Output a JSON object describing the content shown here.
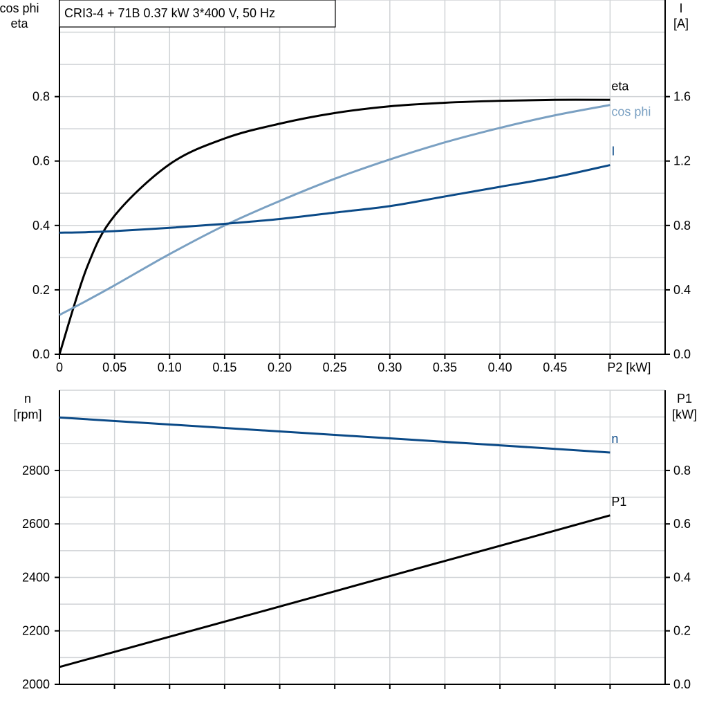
{
  "title": "CRI3-4 + 71B   0.37 kW   3*400 V, 50 Hz",
  "chart_data": [
    {
      "type": "line",
      "xlabel": "P2 [kW]",
      "x_ticks": [
        "0",
        "0.05",
        "0.10",
        "0.15",
        "0.20",
        "0.25",
        "0.30",
        "0.35",
        "0.40",
        "0.45"
      ],
      "xlim": [
        0,
        0.55
      ],
      "grid": true,
      "left_axis": {
        "label_lines": [
          "cos phi",
          "eta"
        ],
        "ylim": [
          0,
          1.1
        ],
        "ticks": [
          "0.0",
          "0.2",
          "0.4",
          "0.6",
          "0.8"
        ]
      },
      "right_axis": {
        "label_lines": [
          "I",
          "[A]"
        ],
        "ylim": [
          0,
          2.2
        ],
        "ticks": [
          "0.0",
          "0.4",
          "0.8",
          "1.2",
          "1.6"
        ]
      },
      "x": [
        0,
        0.025,
        0.05,
        0.1,
        0.15,
        0.2,
        0.25,
        0.3,
        0.35,
        0.4,
        0.45,
        0.5
      ],
      "series": [
        {
          "name": "eta",
          "axis": "left",
          "color": "#000000",
          "values": [
            0,
            0.27,
            0.43,
            0.59,
            0.67,
            0.716,
            0.749,
            0.77,
            0.781,
            0.787,
            0.79,
            0.79
          ]
        },
        {
          "name": "cos phi",
          "axis": "left",
          "color": "#7aa0c2",
          "values": [
            0.122,
            0.167,
            0.214,
            0.311,
            0.4,
            0.476,
            0.545,
            0.605,
            0.658,
            0.703,
            0.742,
            0.774
          ]
        },
        {
          "name": "I",
          "axis": "right",
          "color": "#0b4a87",
          "values": [
            0.755,
            0.758,
            0.765,
            0.785,
            0.81,
            0.84,
            0.88,
            0.92,
            0.98,
            1.04,
            1.1,
            1.175
          ]
        }
      ]
    },
    {
      "type": "line",
      "xlim": [
        0,
        0.55
      ],
      "grid": true,
      "left_axis": {
        "label_lines": [
          "n",
          "[rpm]"
        ],
        "ylim": [
          2000,
          3100
        ],
        "ticks": [
          "2000",
          "2200",
          "2400",
          "2600",
          "2800"
        ]
      },
      "right_axis": {
        "label_lines": [
          "P1",
          "[kW]"
        ],
        "ylim": [
          0,
          1.1
        ],
        "ticks": [
          "0.0",
          "0.2",
          "0.4",
          "0.6",
          "0.8"
        ]
      },
      "x": [
        0,
        0.1,
        0.2,
        0.3,
        0.4,
        0.5
      ],
      "series": [
        {
          "name": "n",
          "axis": "left",
          "color": "#0b4a87",
          "values": [
            2998,
            2972,
            2946,
            2920,
            2894,
            2867
          ]
        },
        {
          "name": "P1",
          "axis": "right",
          "color": "#000000",
          "values": [
            0.065,
            0.178,
            0.291,
            0.405,
            0.518,
            0.632
          ]
        }
      ]
    }
  ]
}
